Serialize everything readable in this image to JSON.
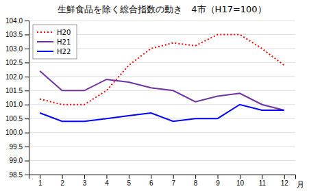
{
  "chart_data": {
    "type": "line",
    "title": "生鮮食品を除く総合指数の動き　4市（H17=100）",
    "xlabel": "月",
    "x": [
      1,
      2,
      3,
      4,
      5,
      6,
      7,
      8,
      9,
      10,
      11,
      12
    ],
    "xlim": [
      0.5,
      12.5
    ],
    "xticks": [
      1,
      2,
      3,
      4,
      5,
      6,
      7,
      8,
      9,
      10,
      11,
      12
    ],
    "ylim": [
      98.5,
      104.0
    ],
    "yticks": [
      98.5,
      {
        "value": 99.0,
        "label": "99.0"
      },
      99.5,
      {
        "value": 100.0,
        "label": "100.0"
      },
      100.5,
      {
        "value": 101.0,
        "label": "101.0"
      },
      101.5,
      {
        "value": 102.0,
        "label": "102.0"
      },
      102.5,
      {
        "value": 103.0,
        "label": "103.0"
      },
      103.5,
      {
        "value": 104.0,
        "label": "104.0"
      }
    ],
    "grid": true,
    "legend": "top-left",
    "series": [
      {
        "name": "H20",
        "color": "#ff0000",
        "line_style": "dotted",
        "values": [
          101.2,
          101.0,
          101.0,
          101.5,
          102.4,
          103.0,
          103.2,
          103.1,
          103.5,
          103.5,
          103.0,
          102.4
        ]
      },
      {
        "name": "H21",
        "color": "#7030a0",
        "line_style": "solid",
        "values": [
          102.2,
          101.5,
          101.5,
          101.9,
          101.8,
          101.6,
          101.5,
          101.1,
          101.3,
          101.4,
          101.0,
          100.8
        ]
      },
      {
        "name": "H22",
        "color": "#0000ff",
        "line_style": "solid",
        "values": [
          100.7,
          100.4,
          100.4,
          100.5,
          100.6,
          100.7,
          100.4,
          100.5,
          100.5,
          101.0,
          100.8,
          100.8
        ]
      }
    ]
  }
}
